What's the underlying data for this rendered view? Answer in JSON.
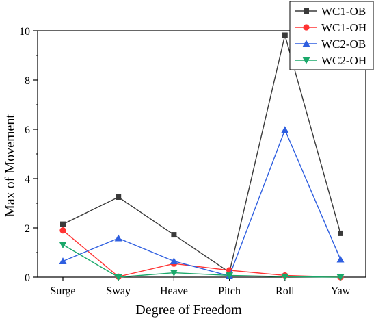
{
  "chart_data": {
    "type": "line",
    "title": "",
    "xlabel": "Degree of Freedom",
    "ylabel": "Max of Movement",
    "categories": [
      "Surge",
      "Sway",
      "Heave",
      "Pitch",
      "Roll",
      "Yaw"
    ],
    "ylim": [
      0,
      10
    ],
    "yticks": [
      0,
      2,
      4,
      6,
      8,
      10
    ],
    "grid": false,
    "legend_position": "top-right",
    "series": [
      {
        "name": "WC1-OB",
        "color": "#3a3a3a",
        "marker": "square",
        "values": [
          2.15,
          3.25,
          1.72,
          0.2,
          9.82,
          1.78
        ]
      },
      {
        "name": "WC1-OH",
        "color": "#ff3333",
        "marker": "circle",
        "values": [
          1.9,
          0.02,
          0.55,
          0.28,
          0.07,
          0.0
        ]
      },
      {
        "name": "WC2-OB",
        "color": "#2f5fe0",
        "marker": "triangle-up",
        "values": [
          0.65,
          1.58,
          0.65,
          0.05,
          5.98,
          0.72
        ]
      },
      {
        "name": "WC2-OH",
        "color": "#1aa86a",
        "marker": "triangle-down",
        "values": [
          1.32,
          0.0,
          0.18,
          0.07,
          0.02,
          0.0
        ]
      }
    ]
  }
}
